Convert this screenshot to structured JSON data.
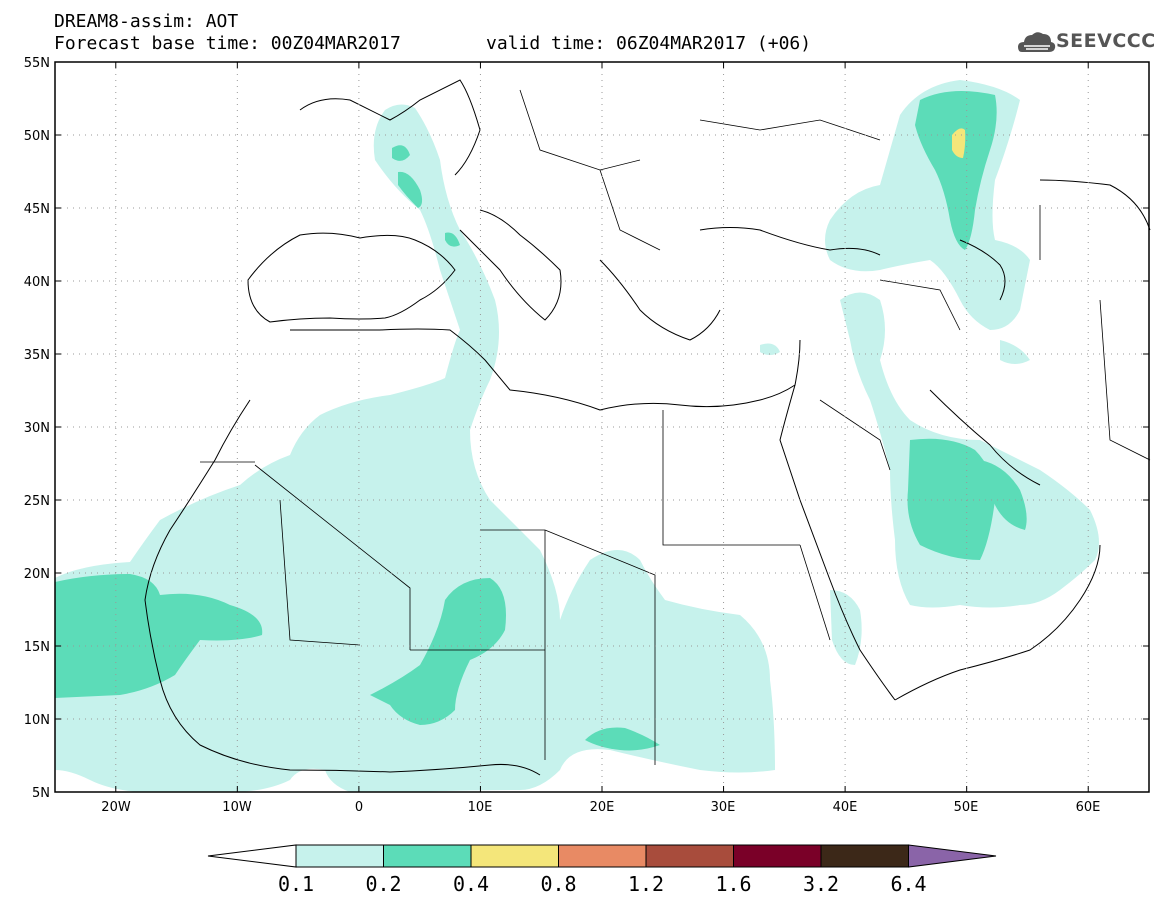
{
  "header": {
    "title": "DREAM8-assim: AOT",
    "base_time": "Forecast base time: 00Z04MAR2017",
    "valid_time": "valid time: 06Z04MAR2017 (+06)",
    "logo_text": "SEEVCCC"
  },
  "map": {
    "lon_range": [
      -25,
      65
    ],
    "lat_range": [
      5,
      55
    ],
    "lat_labels": [
      "55N",
      "50N",
      "45N",
      "40N",
      "35N",
      "30N",
      "25N",
      "20N",
      "15N",
      "10N",
      "5N"
    ],
    "lon_labels": [
      "20W",
      "10W",
      "0",
      "10E",
      "20E",
      "30E",
      "40E",
      "50E",
      "60E"
    ],
    "grid": true,
    "colors": {
      "land_outline": "#000000",
      "grid": "#999999"
    }
  },
  "colorbar": {
    "labels": [
      "0.1",
      "0.2",
      "0.4",
      "0.8",
      "1.2",
      "1.6",
      "3.2",
      "6.4"
    ],
    "colors": [
      "#ffffff",
      "#c6f2ec",
      "#5cdcb8",
      "#f4e67a",
      "#e88a64",
      "#a84c3c",
      "#7a0028",
      "#3c2818",
      "#8a64a8"
    ]
  }
}
